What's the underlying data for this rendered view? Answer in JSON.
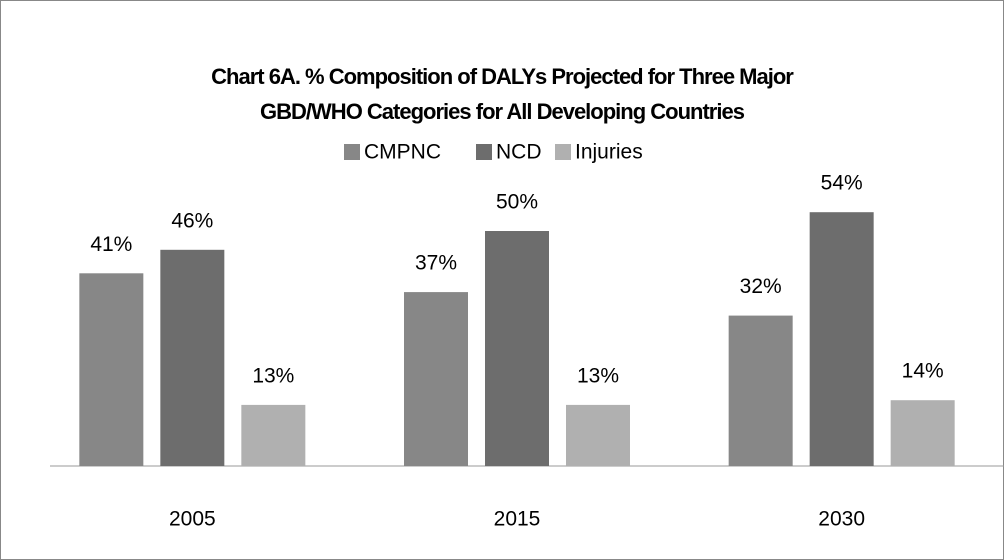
{
  "chart_data": {
    "type": "bar",
    "title": [
      "Chart 6A. % Composition of DALYs Projected for Three Major",
      "GBD/WHO Categories for All Developing Countries"
    ],
    "categories": [
      "2005",
      "2015",
      "2030"
    ],
    "series": [
      {
        "name": "CMPNC",
        "color": "#878787",
        "values": [
          41,
          37,
          32
        ],
        "value_labels": [
          "41%",
          "37%",
          "32%"
        ]
      },
      {
        "name": "NCD",
        "color": "#6d6d6d",
        "values": [
          46,
          50,
          54
        ],
        "value_labels": [
          "46%",
          "50%",
          "54%"
        ]
      },
      {
        "name": "Injuries",
        "color": "#b0b0b0",
        "values": [
          13,
          13,
          14
        ],
        "value_labels": [
          "13%",
          "13%",
          "14%"
        ]
      }
    ],
    "legend": "top"
  }
}
